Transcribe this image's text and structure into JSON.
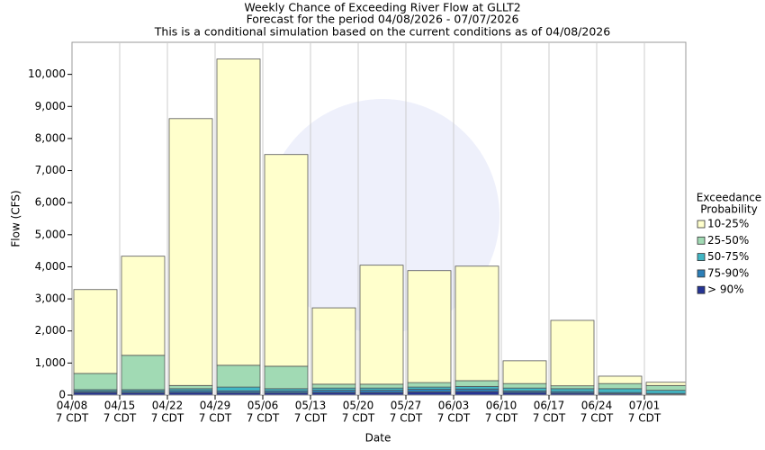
{
  "chart_data": {
    "type": "stacked-bar",
    "title": "Weekly Chance of Exceeding River Flow at GLLT2",
    "subtitle": "Forecast for the period 04/08/2026 - 07/07/2026",
    "note": "This is a conditional simulation based on the current conditions as of 04/08/2026",
    "x_label": "Date",
    "y_label": "Flow (CFS)",
    "categories": [
      "04/08",
      "04/15",
      "04/22",
      "04/29",
      "05/06",
      "05/13",
      "05/20",
      "05/27",
      "06/03",
      "06/10",
      "06/17",
      "06/24",
      "07/01"
    ],
    "x_tick_sublabel": "7 CDT",
    "legend_title": [
      "Exceedance",
      "Probability"
    ],
    "series": [
      {
        "name": "> 90%",
        "color": "#253494",
        "values": [
          80,
          70,
          80,
          70,
          70,
          80,
          80,
          100,
          110,
          80,
          60,
          40,
          20
        ]
      },
      {
        "name": "75-90%",
        "color": "#2c7fb8",
        "values": [
          40,
          50,
          60,
          60,
          60,
          70,
          70,
          80,
          80,
          50,
          50,
          40,
          30
        ]
      },
      {
        "name": "50-75%",
        "color": "#41b6c4",
        "values": [
          50,
          50,
          60,
          120,
          70,
          70,
          70,
          70,
          80,
          90,
          90,
          120,
          100
        ]
      },
      {
        "name": "25-50%",
        "color": "#a1dab4",
        "values": [
          505,
          1070,
          100,
          680,
          700,
          120,
          120,
          140,
          180,
          140,
          90,
          160,
          150
        ]
      },
      {
        "name": "10-25%",
        "color": "#ffffcc",
        "values": [
          2615,
          3090,
          8320,
          9550,
          6600,
          2380,
          3710,
          3490,
          3570,
          710,
          2040,
          230,
          100
        ]
      }
    ],
    "ylim": [
      0,
      11000
    ],
    "yticks": [
      0,
      {
        "value": 1000,
        "label": "1,000"
      },
      {
        "value": 2000,
        "label": "2,000"
      },
      {
        "value": 3000,
        "label": "3,000"
      },
      {
        "value": 4000,
        "label": "4,000"
      },
      {
        "value": 5000,
        "label": "5,000"
      },
      {
        "value": 6000,
        "label": "6,000"
      },
      {
        "value": 7000,
        "label": "7,000"
      },
      {
        "value": 8000,
        "label": "8,000"
      },
      {
        "value": 9000,
        "label": "9,000"
      },
      {
        "value": 10000,
        "label": "10,000"
      }
    ],
    "grid": true
  }
}
